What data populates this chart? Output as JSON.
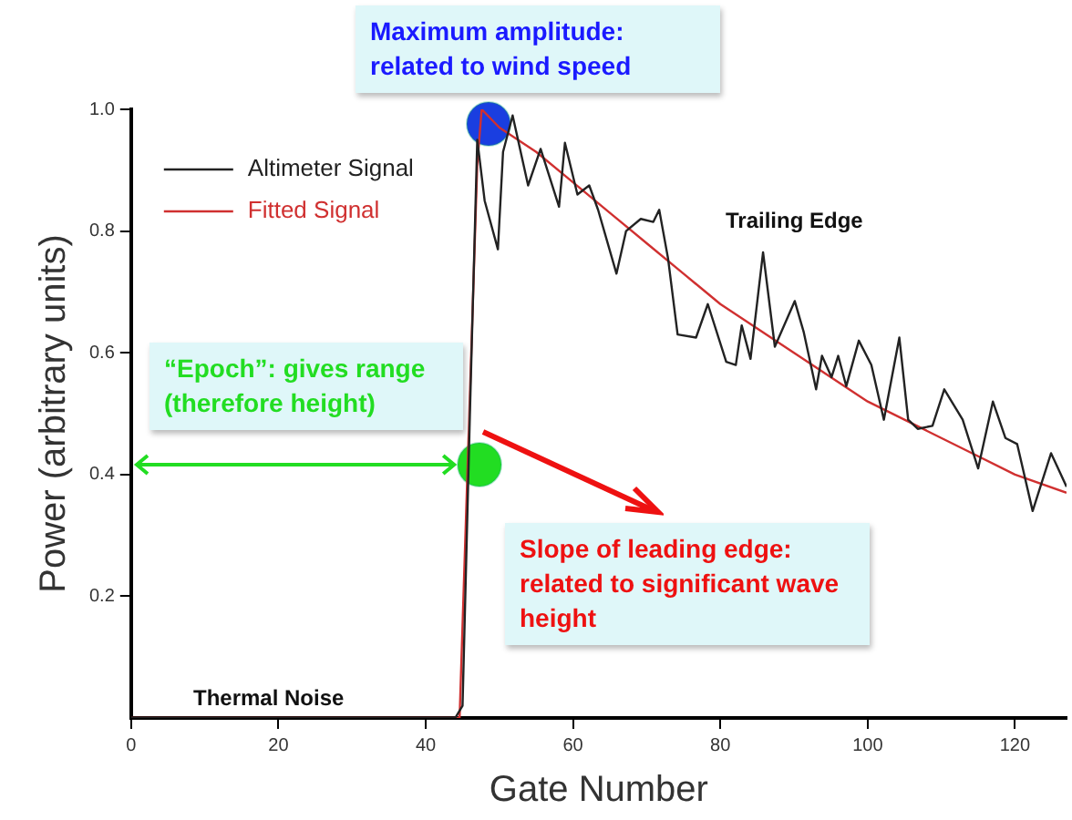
{
  "chart_data": {
    "type": "line",
    "xlabel": "Gate Number",
    "ylabel": "Power (arbitrary units)",
    "xlim": [
      0,
      127
    ],
    "xticks": [
      0,
      20,
      40,
      60,
      80,
      100,
      120
    ],
    "ylim": [
      0,
      1
    ],
    "yticks": [
      0.2,
      0.4,
      0.6,
      0.8,
      {
        "value": 1,
        "label": "1.0"
      }
    ],
    "grid": false,
    "legend": "top left",
    "marker": "none",
    "series": [
      {
        "name": "Altimeter Signal",
        "color": "#222222",
        "x": [
          0,
          44,
          45,
          46,
          47,
          48,
          49.8,
          50.5,
          51.8,
          53.9,
          55.6,
          58.1,
          58.9,
          60.6,
          62.2,
          63.4,
          65.9,
          67.2,
          69.2,
          70.9,
          71.7,
          72.9,
          74.2,
          76.7,
          78.3,
          80.8,
          82.1,
          82.9,
          84.1,
          85.8,
          87.4,
          90.1,
          91.3,
          93,
          93.8,
          95.1,
          96,
          97.1,
          98.8,
          100.5,
          102.2,
          104.3,
          105.5,
          106.8,
          108.8,
          110.4,
          112.9,
          115,
          117,
          118.7,
          120.3,
          122.4,
          124.9,
          127
        ],
        "values": [
          0,
          0,
          0.02,
          0.5,
          0.95,
          0.85,
          0.77,
          0.93,
          0.99,
          0.875,
          0.935,
          0.84,
          0.945,
          0.86,
          0.875,
          0.835,
          0.73,
          0.8,
          0.82,
          0.815,
          0.835,
          0.755,
          0.63,
          0.625,
          0.68,
          0.585,
          0.58,
          0.645,
          0.59,
          0.765,
          0.61,
          0.685,
          0.635,
          0.54,
          0.595,
          0.56,
          0.595,
          0.545,
          0.62,
          0.58,
          0.49,
          0.625,
          0.49,
          0.475,
          0.48,
          0.54,
          0.49,
          0.41,
          0.52,
          0.46,
          0.45,
          0.34,
          0.435,
          0.38
        ]
      },
      {
        "name": "Fitted Signal",
        "color": "#d03030",
        "x": [
          0,
          44.6,
          47,
          47.6,
          50,
          55,
          60,
          65,
          70,
          75,
          80,
          85,
          90,
          95,
          100,
          105,
          110,
          115,
          120,
          127
        ],
        "values": [
          0,
          0,
          0.91,
          1,
          0.97,
          0.93,
          0.88,
          0.83,
          0.78,
          0.73,
          0.68,
          0.64,
          0.6,
          0.56,
          0.52,
          0.49,
          0.46,
          0.43,
          0.4,
          0.37
        ]
      }
    ],
    "annotations": [
      "Maximum amplitude: related to wind speed",
      "“Epoch”: gives range (therefore height)",
      "Slope of leading edge: related to significant wave height",
      "Trailing Edge",
      "Thermal Noise"
    ]
  }
}
